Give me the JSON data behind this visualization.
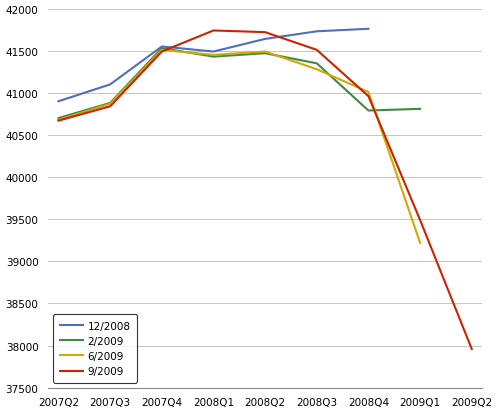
{
  "x_labels": [
    "2007Q2",
    "2007Q3",
    "2007Q4",
    "2008Q1",
    "2008Q2",
    "2008Q3",
    "2008Q4",
    "2009Q1",
    "2009Q2"
  ],
  "series": [
    {
      "label": "12/2008",
      "color": "#4f6fbe",
      "x_indices": [
        0,
        1,
        2,
        3,
        4,
        5,
        6
      ],
      "values": [
        40900,
        41100,
        41550,
        41490,
        41640,
        41730,
        41760
      ]
    },
    {
      "label": "2/2009",
      "color": "#3e8a3e",
      "x_indices": [
        0,
        1,
        2,
        3,
        4,
        5,
        6,
        7
      ],
      "values": [
        40700,
        40880,
        41530,
        41430,
        41470,
        41350,
        40790,
        40810
      ]
    },
    {
      "label": "6/2009",
      "color": "#d4a800",
      "x_indices": [
        0,
        1,
        2,
        3,
        4,
        5,
        6,
        7
      ],
      "values": [
        40680,
        40870,
        41510,
        41450,
        41490,
        41280,
        41010,
        39220
      ]
    },
    {
      "label": "9/2009",
      "color": "#cc2200",
      "x_indices": [
        0,
        1,
        2,
        3,
        4,
        5,
        6,
        7,
        8
      ],
      "values": [
        40670,
        40840,
        41490,
        41740,
        41720,
        41510,
        40960,
        39490,
        37960
      ]
    }
  ],
  "ylim": [
    37500,
    42000
  ],
  "yticks": [
    37500,
    38000,
    38500,
    39000,
    39500,
    40000,
    40500,
    41000,
    41500,
    42000
  ],
  "background_color": "#ffffff",
  "grid_color": "#bbbbbb",
  "linewidth": 1.5,
  "tick_fontsize": 7.5,
  "legend_fontsize": 7.5
}
